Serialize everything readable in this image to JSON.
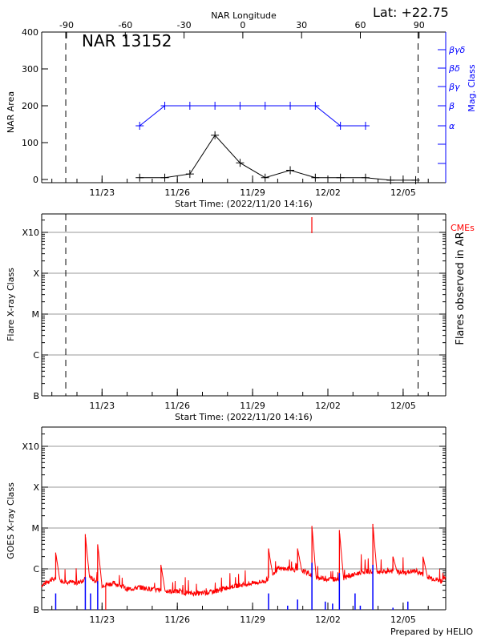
{
  "header": {
    "lat_label": "Lat: +22.75",
    "region_title": "NAR 13152"
  },
  "footer": {
    "credit": "Prepared by HELIO"
  },
  "chart_data": [
    {
      "type": "line",
      "panel": "nar",
      "title": "NAR 13152",
      "xlabel": "Start Time: (2022/11/20 14:16)",
      "x_tick_labels": [
        "11/23",
        "11/26",
        "11/29",
        "12/02",
        "12/05"
      ],
      "top_axis_label": "NAR Longitude",
      "top_tick_labels": [
        "-90",
        "-60",
        "-30",
        "0",
        "30",
        "60",
        "90"
      ],
      "ylabel": "NAR Area",
      "ylim": [
        0,
        400
      ],
      "y_tick_labels": [
        "0",
        "100",
        "200",
        "300",
        "400"
      ],
      "y2label": "Mag. Class",
      "y2_tick_labels": [
        "α",
        "β",
        "βγ",
        "βδ",
        "βγδ"
      ],
      "limb_markers_longitude": [
        -90,
        90
      ],
      "series": [
        {
          "color": "#000000",
          "x": [
            "11/24 12:00",
            "11/25 12:00",
            "11/26 12:00",
            "11/27 12:00",
            "11/28 12:00",
            "11/29 12:00",
            "11/30 12:00",
            "12/01 12:00",
            "12/02 12:00",
            "12/03 12:00",
            "12/04 12:00",
            "12/05 12:00"
          ],
          "y": [
            5,
            5,
            15,
            120,
            45,
            5,
            25,
            5,
            5,
            5,
            -2,
            -2
          ]
        },
        {
          "color": "#0000ff",
          "x": [
            "11/24 12:00",
            "11/25 12:00",
            "11/26 12:00",
            "11/27 12:00",
            "11/28 12:00",
            "11/29 12:00",
            "11/30 12:00",
            "12/01 12:00",
            "12/02 12:00",
            "12/03 12:00"
          ],
          "y": [
            "α",
            "β",
            "β",
            "β",
            "β",
            "β",
            "β",
            "β",
            "α",
            "α"
          ]
        }
      ]
    },
    {
      "type": "line",
      "panel": "flares",
      "xlabel": "Start Time: (2022/11/20 14:16)",
      "x_tick_labels": [
        "11/23",
        "11/26",
        "11/29",
        "12/02",
        "12/05"
      ],
      "ylabel": "Flare X-ray Class",
      "y_tick_labels": [
        "B",
        "C",
        "M",
        "X",
        "X10"
      ],
      "y2label": "Flares observed in AR",
      "cme_label": "CMEs",
      "cme_color": "#ff0000",
      "cmes": [
        "12/01 08:40"
      ],
      "grid": true
    },
    {
      "type": "line",
      "panel": "goes",
      "ylabel": "GOES X-ray Class",
      "y_tick_labels": [
        "B",
        "C",
        "M",
        "X",
        "X10"
      ],
      "x_tick_labels": [
        "11/23",
        "11/26",
        "11/29",
        "12/02",
        "12/05"
      ],
      "grid": true,
      "series": [
        {
          "color": "#ff0000",
          "baseline": [
            [
              "11/20 14:16",
              -6.4
            ],
            [
              "11/21 00:00",
              -6.25
            ],
            [
              "11/21 12:00",
              -6.3
            ],
            [
              "11/22 00:00",
              -6.35
            ],
            [
              "11/22 12:00",
              -6.2
            ],
            [
              "11/23 00:00",
              -6.4
            ],
            [
              "11/23 12:00",
              -6.35
            ],
            [
              "11/24 00:00",
              -6.5
            ],
            [
              "11/24 12:00",
              -6.45
            ],
            [
              "11/25 00:00",
              -6.5
            ],
            [
              "11/25 12:00",
              -6.55
            ],
            [
              "11/26 00:00",
              -6.55
            ],
            [
              "11/26 12:00",
              -6.6
            ],
            [
              "11/27 00:00",
              -6.6
            ],
            [
              "11/27 12:00",
              -6.55
            ],
            [
              "11/28 00:00",
              -6.45
            ],
            [
              "11/28 12:00",
              -6.4
            ],
            [
              "11/29 00:00",
              -6.35
            ],
            [
              "11/29 12:00",
              -6.3
            ],
            [
              "11/30 00:00",
              -6.0
            ],
            [
              "11/30 12:00",
              -6.0
            ],
            [
              "12/01 00:00",
              -6.05
            ],
            [
              "12/01 12:00",
              -6.2
            ],
            [
              "12/02 00:00",
              -6.25
            ],
            [
              "12/02 12:00",
              -6.25
            ],
            [
              "12/03 00:00",
              -6.15
            ],
            [
              "12/03 12:00",
              -6.05
            ],
            [
              "12/04 00:00",
              -6.1
            ],
            [
              "12/04 12:00",
              -6.05
            ],
            [
              "12/05 00:00",
              -6.1
            ],
            [
              "12/05 12:00",
              -6.05
            ],
            [
              "12/06 00:00",
              -6.2
            ],
            [
              "12/06 12:00",
              -6.3
            ],
            [
              "12/06 16:40",
              -6.2
            ]
          ],
          "peaks": [
            [
              "11/21 03:40",
              -5.6
            ],
            [
              "11/22 08:00",
              -5.15
            ],
            [
              "11/22 19:50",
              -5.4
            ],
            [
              "11/23 03:30",
              -7.0
            ],
            [
              "11/25 08:20",
              -5.9
            ],
            [
              "11/29 15:15",
              -5.5
            ],
            [
              "11/30 19:00",
              -5.5
            ],
            [
              "12/01 08:45",
              -4.95
            ],
            [
              "12/02 11:00",
              -5.05
            ],
            [
              "12/03 19:00",
              -4.9
            ],
            [
              "12/04 14:15",
              -5.7
            ],
            [
              "12/05 19:00",
              -5.7
            ]
          ]
        },
        {
          "color": "#0000ff",
          "bars": [
            [
              "11/21 03:40",
              -6.6
            ],
            [
              "11/22 08:00",
              -6.2
            ],
            [
              "11/22 13:00",
              -6.6
            ],
            [
              "11/22 19:50",
              -6.3
            ],
            [
              "11/29 15:15",
              -6.6
            ],
            [
              "11/30 09:30",
              -6.9
            ],
            [
              "11/30 19:00",
              -6.75
            ],
            [
              "12/01 08:45",
              -5.85
            ],
            [
              "12/01 21:30",
              -6.8
            ],
            [
              "12/02 04:30",
              -6.85
            ],
            [
              "12/02 11:00",
              -6.1
            ],
            [
              "12/03 02:00",
              -6.6
            ],
            [
              "12/03 07:00",
              -6.9
            ],
            [
              "12/03 19:00",
              -5.9
            ],
            [
              "12/04 14:15",
              -6.95
            ],
            [
              "12/05 04:30",
              -6.8
            ]
          ]
        }
      ]
    }
  ]
}
